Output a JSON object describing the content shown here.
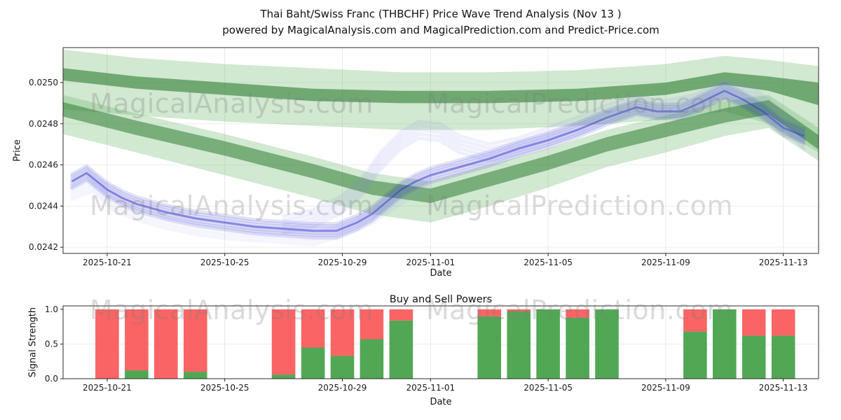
{
  "figure": {
    "title_line1": "Thai Baht/Swiss Franc (THBCHF) Price Wave Trend Analysis (Nov 13 )",
    "title_line2": "powered by MagicalAnalysis.com and MagicalPrediction.com and Predict-Price.com"
  },
  "watermarks": {
    "analysis": "MagicalAnalysis.com",
    "prediction": "MagicalPrediction.com"
  },
  "chart_data": [
    {
      "id": "price",
      "type": "area",
      "title": "",
      "xlabel": "Date",
      "ylabel": "Price",
      "x_epoch": "2025-10-19",
      "x_domain_days": [
        0.5,
        26.2
      ],
      "ylim": [
        0.02417,
        0.02517
      ],
      "x_ticks": [
        "2025-10-21",
        "2025-10-25",
        "2025-10-29",
        "2025-11-01",
        "2025-11-05",
        "2025-11-09",
        "2025-11-13"
      ],
      "y_ticks": [
        "0.0242",
        "0.0244",
        "0.0246",
        "0.0248",
        "0.0250"
      ],
      "grid": true,
      "legend": "none",
      "bands": [
        {
          "name": "upper-channel-halo",
          "color": "#74b874",
          "opacity": 0.33,
          "x": [
            0.5,
            3,
            6,
            9,
            12,
            15,
            18,
            21,
            23,
            24.5,
            26.2
          ],
          "upper": [
            0.02516,
            0.02512,
            0.02509,
            0.02507,
            0.02505,
            0.02505,
            0.02506,
            0.02509,
            0.02513,
            0.02511,
            0.02508
          ],
          "lower": [
            0.02487,
            0.02484,
            0.02481,
            0.02479,
            0.02477,
            0.02477,
            0.02479,
            0.02482,
            0.02486,
            0.0248,
            0.02466
          ]
        },
        {
          "name": "upper-channel-core",
          "color": "#2f7d32",
          "opacity": 0.6,
          "x": [
            0.5,
            3,
            6,
            9,
            12,
            15,
            18,
            21,
            23,
            24.5,
            26.2
          ],
          "upper": [
            0.02507,
            0.02503,
            0.025,
            0.02497,
            0.02496,
            0.02496,
            0.02497,
            0.025,
            0.02505,
            0.02503,
            0.025
          ],
          "lower": [
            0.02501,
            0.02497,
            0.02494,
            0.02491,
            0.0249,
            0.0249,
            0.02491,
            0.02494,
            0.02499,
            0.02496,
            0.02489
          ]
        },
        {
          "name": "lower-channel-halo",
          "color": "#74b874",
          "opacity": 0.33,
          "x": [
            0.5,
            3,
            6,
            9,
            11,
            13,
            15,
            17,
            19,
            21,
            23,
            24.5,
            26.2
          ],
          "upper": [
            0.02494,
            0.02485,
            0.02475,
            0.02464,
            0.02456,
            0.02452,
            0.0246,
            0.02468,
            0.02477,
            0.02484,
            0.02491,
            0.02494,
            0.02478
          ],
          "lower": [
            0.02475,
            0.02466,
            0.02455,
            0.02444,
            0.02436,
            0.02432,
            0.0244,
            0.02449,
            0.02459,
            0.02466,
            0.02474,
            0.02478,
            0.02462
          ]
        },
        {
          "name": "lower-channel-core",
          "color": "#2f7d32",
          "opacity": 0.55,
          "x": [
            0.5,
            3,
            6,
            9,
            11,
            13,
            15,
            17,
            19,
            21,
            23,
            24.5,
            26.2
          ],
          "upper": [
            0.024905,
            0.024815,
            0.024715,
            0.024605,
            0.024525,
            0.024485,
            0.024565,
            0.024645,
            0.024735,
            0.024805,
            0.024875,
            0.024915,
            0.024745
          ],
          "lower": [
            0.024835,
            0.024745,
            0.024645,
            0.024535,
            0.024455,
            0.024415,
            0.024495,
            0.024575,
            0.024665,
            0.024735,
            0.024805,
            0.024845,
            0.024675
          ]
        }
      ],
      "lines": [
        {
          "name": "price-wave-main",
          "color": "#2b2bd0",
          "opacity": 0.14,
          "width": 5,
          "layers": 7,
          "spread": 10,
          "core": {
            "opacity": 0.5,
            "width": 2.5
          },
          "x": [
            0.8,
            1.3,
            2,
            2.5,
            3,
            4,
            5,
            6,
            7,
            8,
            9,
            9.8,
            10.5,
            11,
            11.5,
            12,
            12.5,
            13,
            14,
            15,
            16,
            17,
            18,
            19,
            20,
            20.7,
            21.5,
            22,
            23,
            23.6,
            24.3,
            25,
            25.7
          ],
          "y": [
            0.02452,
            0.02456,
            0.02448,
            0.02444,
            0.02441,
            0.02437,
            0.02434,
            0.02432,
            0.0243,
            0.02429,
            0.02428,
            0.02428,
            0.02432,
            0.02436,
            0.02442,
            0.02448,
            0.02452,
            0.02455,
            0.02459,
            0.02463,
            0.02468,
            0.02472,
            0.02477,
            0.02483,
            0.02488,
            0.02486,
            0.02486,
            0.02489,
            0.02496,
            0.02492,
            0.02486,
            0.02478,
            0.02474
          ]
        },
        {
          "name": "price-wave-upper",
          "color": "#8585ef",
          "opacity": 0.12,
          "width": 5,
          "layers": 5,
          "spread": 12,
          "x": [
            8,
            9,
            10,
            10.7,
            11.3,
            12,
            12.6,
            13.3,
            14,
            15,
            16,
            17,
            18,
            19,
            20,
            21,
            22,
            23,
            24,
            25,
            25.7
          ],
          "y": [
            0.02431,
            0.02434,
            0.02441,
            0.0245,
            0.02462,
            0.02472,
            0.02477,
            0.02476,
            0.0247,
            0.02466,
            0.02469,
            0.02474,
            0.02479,
            0.02485,
            0.02489,
            0.02487,
            0.0249,
            0.02497,
            0.02493,
            0.02482,
            0.02472
          ]
        },
        {
          "name": "price-wave-lower",
          "color": "#9a9af2",
          "opacity": 0.1,
          "width": 5,
          "layers": 4,
          "spread": 8,
          "x": [
            0.8,
            1.5,
            2.2,
            3,
            4,
            5,
            6,
            7,
            8,
            9,
            10,
            11,
            12,
            13
          ],
          "y": [
            0.02446,
            0.0245,
            0.02441,
            0.02436,
            0.02432,
            0.02429,
            0.02427,
            0.02426,
            0.02425,
            0.02424,
            0.02428,
            0.02434,
            0.02444,
            0.02452
          ]
        }
      ]
    },
    {
      "id": "signal",
      "type": "stacked-bar",
      "title": "Buy and Sell Powers",
      "xlabel": "Date",
      "ylabel": "Signal Strength",
      "x_epoch": "2025-10-19",
      "x_domain_days": [
        0.5,
        26.2
      ],
      "ylim": [
        0,
        1.05
      ],
      "bar_width_days": 0.8,
      "x_ticks": [
        "2025-10-21",
        "2025-10-25",
        "2025-10-29",
        "2025-11-01",
        "2025-11-05",
        "2025-11-09",
        "2025-11-13"
      ],
      "y_ticks": [
        "0.0",
        "0.5",
        "1.0"
      ],
      "grid": true,
      "legend": "none",
      "categories": [
        "2025-10-21",
        "2025-10-22",
        "2025-10-23",
        "2025-10-24",
        "2025-10-27",
        "2025-10-28",
        "2025-10-29",
        "2025-10-30",
        "2025-10-31",
        "2025-11-03",
        "2025-11-04",
        "2025-11-05",
        "2025-11-06",
        "2025-11-07",
        "2025-11-10",
        "2025-11-11",
        "2025-11-12",
        "2025-11-13"
      ],
      "series": [
        {
          "name": "Buy",
          "color": "#43a047",
          "opacity": 0.92,
          "values": [
            0.0,
            0.12,
            0.0,
            0.1,
            0.06,
            0.45,
            0.33,
            0.57,
            0.84,
            0.9,
            0.97,
            1.0,
            0.88,
            1.0,
            0.68,
            1.0,
            0.62,
            0.62
          ]
        },
        {
          "name": "Sell",
          "color": "#f94f4f",
          "opacity": 0.88,
          "values": [
            1.0,
            0.88,
            1.0,
            0.9,
            0.94,
            0.55,
            0.67,
            0.43,
            0.16,
            0.1,
            0.03,
            0.0,
            0.12,
            0.0,
            0.32,
            0.0,
            0.38,
            0.38
          ]
        }
      ]
    }
  ]
}
